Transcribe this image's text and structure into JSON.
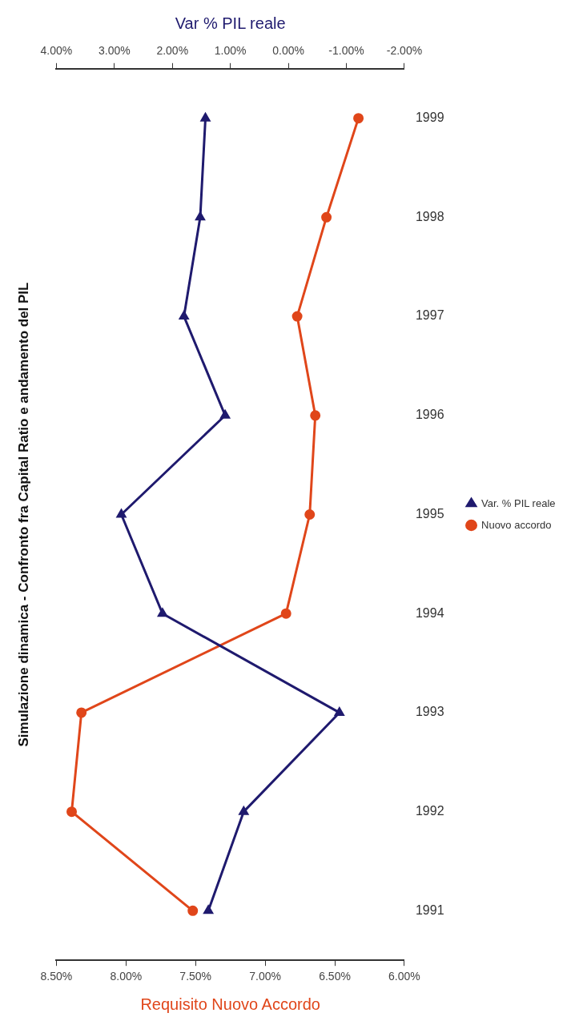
{
  "chart_data": {
    "type": "line",
    "orientation": "horizontal",
    "title": "Simulazione dinamica - Confronto fra Capital Ratio e andamento del PIL",
    "xlabel": "Requisito Nuovo Accordo",
    "x2label": "Var % PIL reale",
    "categories": [
      "1999",
      "1998",
      "1997",
      "1996",
      "1995",
      "1994",
      "1993",
      "1992",
      "1991"
    ],
    "series": [
      {
        "name": "Var. % PIL reale",
        "color": "#1f1a6e",
        "axis": "x2",
        "marker": "triangle",
        "values": [
          1.43,
          1.52,
          1.8,
          1.09,
          2.88,
          2.17,
          -0.88,
          0.77,
          1.38
        ]
      },
      {
        "name": "Nuovo accordo",
        "color": "#e0461a",
        "marker": "circle",
        "values": [
          6.33,
          6.56,
          6.77,
          6.64,
          6.68,
          6.85,
          8.32,
          8.39,
          7.52
        ]
      }
    ],
    "xlim": [
      8.5,
      6
    ],
    "xticks": [
      {
        "value": 6,
        "label": "6.00%"
      },
      {
        "value": 6.5,
        "label": "6.50%"
      },
      {
        "value": 7,
        "label": "7.00%"
      },
      {
        "value": 7.5,
        "label": "7.50%"
      },
      {
        "value": 8,
        "label": "8.00%"
      },
      {
        "value": 8.5,
        "label": "8.50%"
      }
    ],
    "x2lim": [
      4,
      -2
    ],
    "x2ticks": [
      {
        "value": -2,
        "label": "-2.00%"
      },
      {
        "value": -1,
        "label": "-1.00%"
      },
      {
        "value": 0,
        "label": "0.00%"
      },
      {
        "value": 1,
        "label": "1.00%"
      },
      {
        "value": 2,
        "label": "2.00%"
      },
      {
        "value": 3,
        "label": "3.00%"
      },
      {
        "value": 4,
        "label": "4.00%"
      }
    ],
    "grid": false,
    "legend": "right",
    "line_style": "solid"
  }
}
